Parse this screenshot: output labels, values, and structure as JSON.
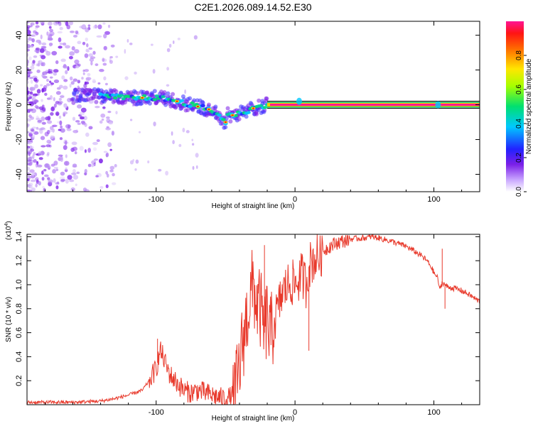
{
  "title": "C2E1.2026.089.14.52.E30",
  "colors": {
    "line": "#e8392b",
    "scatter": "#7b1fe8",
    "frame": "#000000"
  },
  "chart_data": [
    {
      "type": "heatmap",
      "xlabel": "Height of straight line (km)",
      "ylabel": "Frequency (Hz)",
      "xlim": [
        -193,
        133
      ],
      "ylim": [
        -50,
        48
      ],
      "xticks": [
        -100,
        0,
        100
      ],
      "yticks": [
        -40,
        -20,
        0,
        20,
        40
      ],
      "ridge": {
        "x": [
          -155,
          -140,
          -120,
          -110,
          -100,
          -90,
          -80,
          -70,
          -60,
          -55,
          -50,
          -48,
          -45,
          -40,
          -35,
          -30,
          -25,
          -20,
          -15,
          -10,
          -5,
          0,
          3,
          5,
          10,
          20,
          60,
          100,
          103,
          133
        ],
        "y": [
          5,
          5,
          4,
          4,
          4,
          3,
          1,
          -1,
          -3,
          -6,
          -10,
          -5,
          -6,
          -5,
          -4,
          -2,
          -1,
          0,
          0,
          0,
          0,
          0,
          2,
          2,
          0,
          0,
          0,
          0,
          0,
          0
        ]
      },
      "colorbar": {
        "label": "Normalized spectral amplitude",
        "ticks": [
          0.0,
          0.2,
          0.4,
          0.6,
          0.8
        ],
        "range": [
          0,
          1
        ]
      }
    },
    {
      "type": "line",
      "xlabel": "Height of straight line (km)",
      "ylabel": "SNR (10 * v/v)",
      "exponent": "(x10",
      "exponent_power": "4",
      "xlim": [
        -193,
        133
      ],
      "ylim": [
        0,
        1.42
      ],
      "xticks": [
        -100,
        0,
        100
      ],
      "yticks": [
        0.2,
        0.4,
        0.6,
        0.8,
        1.0,
        1.2,
        1.4
      ],
      "ytick_labels": [
        "0.2",
        "0.4",
        "0.6",
        "0.8",
        "1.0",
        "1.2",
        "1.4"
      ],
      "series": [
        {
          "name": "SNR",
          "x": [
            -193,
            -160,
            -140,
            -130,
            -120,
            -110,
            -105,
            -100,
            -97,
            -95,
            -92,
            -90,
            -85,
            -80,
            -75,
            -70,
            -65,
            -60,
            -55,
            -50,
            -45,
            -43,
            -40,
            -38,
            -35,
            -32,
            -30,
            -28,
            -25,
            -22,
            -20,
            -18,
            -15,
            -12,
            -10,
            -8,
            -5,
            -3,
            0,
            3,
            5,
            8,
            10,
            12,
            15,
            18,
            20,
            25,
            30,
            40,
            50,
            55,
            60,
            70,
            80,
            90,
            95,
            98,
            100,
            103,
            104,
            106,
            108,
            110,
            115,
            120,
            125,
            130,
            133
          ],
          "y": [
            0.02,
            0.02,
            0.03,
            0.05,
            0.08,
            0.12,
            0.2,
            0.3,
            0.45,
            0.4,
            0.3,
            0.25,
            0.18,
            0.12,
            0.1,
            0.12,
            0.1,
            0.08,
            0.06,
            0.05,
            0.07,
            0.1,
            0.3,
            0.5,
            0.7,
            0.9,
            1.0,
            0.85,
            0.8,
            0.6,
            0.75,
            0.55,
            0.7,
            0.8,
            0.9,
            0.95,
            1.0,
            1.02,
            1.0,
            1.05,
            1.08,
            1.0,
            1.15,
            1.2,
            1.22,
            1.25,
            1.28,
            1.32,
            1.35,
            1.38,
            1.39,
            1.4,
            1.39,
            1.36,
            1.32,
            1.25,
            1.2,
            1.15,
            1.1,
            1.05,
            0.95,
            1.02,
            1.0,
            0.98,
            0.97,
            0.95,
            0.92,
            0.88,
            0.86
          ]
        }
      ]
    }
  ]
}
